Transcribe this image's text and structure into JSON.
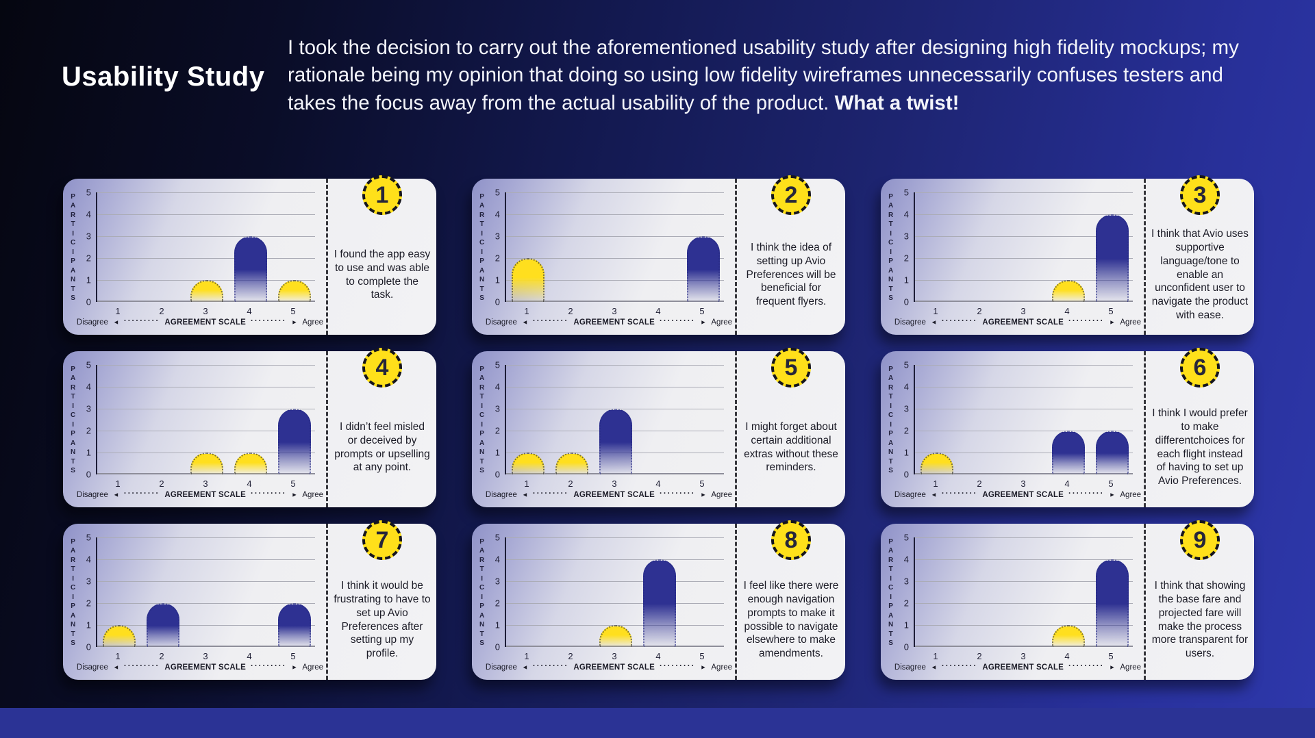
{
  "header": {
    "title": "Usability Study",
    "paragraph_regular": "I took the decision to carry out the aforementioned usability study after designing high fidelity mockups; my rationale being my opinion that doing so using low fidelity wireframes unnecessarily confuses testers and takes the focus away from the actual usability of the product. ",
    "paragraph_bold": "What a twist!"
  },
  "axis": {
    "y_label": "PARTICIPANTS",
    "y_ticks": [
      5,
      4,
      3,
      2,
      1,
      0
    ],
    "x_ticks": [
      1,
      2,
      3,
      4,
      5
    ],
    "x_left": "Disagree",
    "x_center": "AGREEMENT SCALE",
    "x_right": "Agree",
    "arrow_left": "◄",
    "arrow_right": "►",
    "dots": "·········"
  },
  "colors": {
    "bar_yellow": "#FFDF1E",
    "bar_blue": "#2E3192",
    "badge_yellow": "#FFE01A",
    "card_bg": "#F2F2F4",
    "card_tint": "#8F92C8",
    "footer_blue": "#2B3395",
    "background_dark": "#050610",
    "background_blue": "#2E38AB"
  },
  "chart_data": [
    {
      "type": "bar",
      "number": "1",
      "ylabel": "PARTICIPANTS",
      "xlabel": "AGREEMENT SCALE",
      "ylim": [
        0,
        5
      ],
      "categories": [
        1,
        2,
        3,
        4,
        5
      ],
      "values": [
        0,
        0,
        1,
        3,
        1
      ],
      "bar_colors": [
        "",
        "",
        "yellow",
        "blue",
        "yellow"
      ],
      "statement": "I found the app easy to use and was able to complete the task."
    },
    {
      "type": "bar",
      "number": "2",
      "ylabel": "PARTICIPANTS",
      "xlabel": "AGREEMENT SCALE",
      "ylim": [
        0,
        5
      ],
      "categories": [
        1,
        2,
        3,
        4,
        5
      ],
      "values": [
        2,
        0,
        0,
        0,
        3
      ],
      "bar_colors": [
        "yellow",
        "",
        "",
        "",
        "blue"
      ],
      "statement": "I think the idea of setting up Avio Preferences will be beneficial for frequent flyers."
    },
    {
      "type": "bar",
      "number": "3",
      "ylabel": "PARTICIPANTS",
      "xlabel": "AGREEMENT SCALE",
      "ylim": [
        0,
        5
      ],
      "categories": [
        1,
        2,
        3,
        4,
        5
      ],
      "values": [
        0,
        0,
        0,
        1,
        4
      ],
      "bar_colors": [
        "",
        "",
        "",
        "yellow",
        "blue"
      ],
      "statement": "I think that Avio uses supportive language/tone to enable an unconfident user to navigate the product with ease."
    },
    {
      "type": "bar",
      "number": "4",
      "ylabel": "PARTICIPANTS",
      "xlabel": "AGREEMENT SCALE",
      "ylim": [
        0,
        5
      ],
      "categories": [
        1,
        2,
        3,
        4,
        5
      ],
      "values": [
        0,
        0,
        1,
        1,
        3
      ],
      "bar_colors": [
        "",
        "",
        "yellow",
        "yellow",
        "blue"
      ],
      "statement": "I didn’t feel misled or deceived by prompts or upselling at any point."
    },
    {
      "type": "bar",
      "number": "5",
      "ylabel": "PARTICIPANTS",
      "xlabel": "AGREEMENT SCALE",
      "ylim": [
        0,
        5
      ],
      "categories": [
        1,
        2,
        3,
        4,
        5
      ],
      "values": [
        1,
        1,
        3,
        0,
        0
      ],
      "bar_colors": [
        "yellow",
        "yellow",
        "blue",
        "",
        ""
      ],
      "statement": "I might forget about certain additional extras without these reminders."
    },
    {
      "type": "bar",
      "number": "6",
      "ylabel": "PARTICIPANTS",
      "xlabel": "AGREEMENT SCALE",
      "ylim": [
        0,
        5
      ],
      "categories": [
        1,
        2,
        3,
        4,
        5
      ],
      "values": [
        1,
        0,
        0,
        2,
        2
      ],
      "bar_colors": [
        "yellow",
        "",
        "",
        "blue",
        "blue"
      ],
      "statement": "I think I would prefer to make differentchoices for each flight instead of having to set up Avio Preferences."
    },
    {
      "type": "bar",
      "number": "7",
      "ylabel": "PARTICIPANTS",
      "xlabel": "AGREEMENT SCALE",
      "ylim": [
        0,
        5
      ],
      "categories": [
        1,
        2,
        3,
        4,
        5
      ],
      "values": [
        1,
        2,
        0,
        0,
        2
      ],
      "bar_colors": [
        "yellow",
        "blue",
        "",
        "",
        "blue"
      ],
      "statement": "I think it would be frustrating to have to set up Avio Preferences after setting up my profile."
    },
    {
      "type": "bar",
      "number": "8",
      "ylabel": "PARTICIPANTS",
      "xlabel": "AGREEMENT SCALE",
      "ylim": [
        0,
        5
      ],
      "categories": [
        1,
        2,
        3,
        4,
        5
      ],
      "values": [
        0,
        0,
        1,
        4,
        0
      ],
      "bar_colors": [
        "",
        "",
        "yellow",
        "blue",
        ""
      ],
      "statement": "I feel like there were enough navigation prompts to make it possible to navigate elsewhere to make amendments."
    },
    {
      "type": "bar",
      "number": "9",
      "ylabel": "PARTICIPANTS",
      "xlabel": "AGREEMENT SCALE",
      "ylim": [
        0,
        5
      ],
      "categories": [
        1,
        2,
        3,
        4,
        5
      ],
      "values": [
        0,
        0,
        0,
        1,
        4
      ],
      "bar_colors": [
        "",
        "",
        "",
        "yellow",
        "blue"
      ],
      "statement": "I think that showing the base fare and projected fare will make the process more transparent for users."
    }
  ]
}
